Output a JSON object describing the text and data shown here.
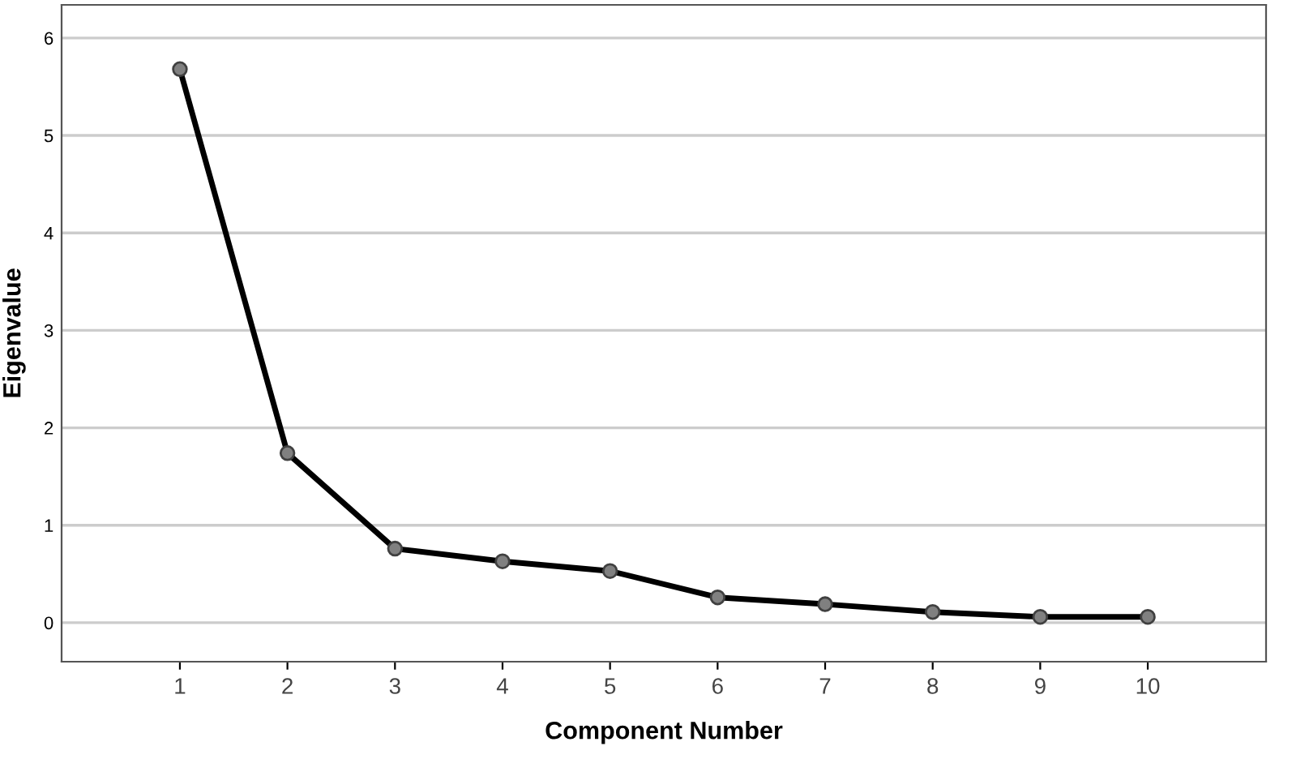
{
  "chart_data": {
    "type": "line",
    "xlabel": "Component Number",
    "ylabel": "Eigenvalue",
    "categories": [
      "1",
      "2",
      "3",
      "4",
      "5",
      "6",
      "7",
      "8",
      "9",
      "10"
    ],
    "series": [
      {
        "color": "#000000",
        "values": [
          5.68,
          1.74,
          0.76,
          0.63,
          0.53,
          0.26,
          0.19,
          0.11,
          0.06,
          0.06
        ]
      }
    ],
    "ylim": [
      -0.4,
      6.34
    ],
    "yticks": [
      0,
      1,
      2,
      3,
      4,
      5,
      6
    ],
    "grid": "y",
    "marker": "circle",
    "line_style": "solid",
    "legend": false
  }
}
